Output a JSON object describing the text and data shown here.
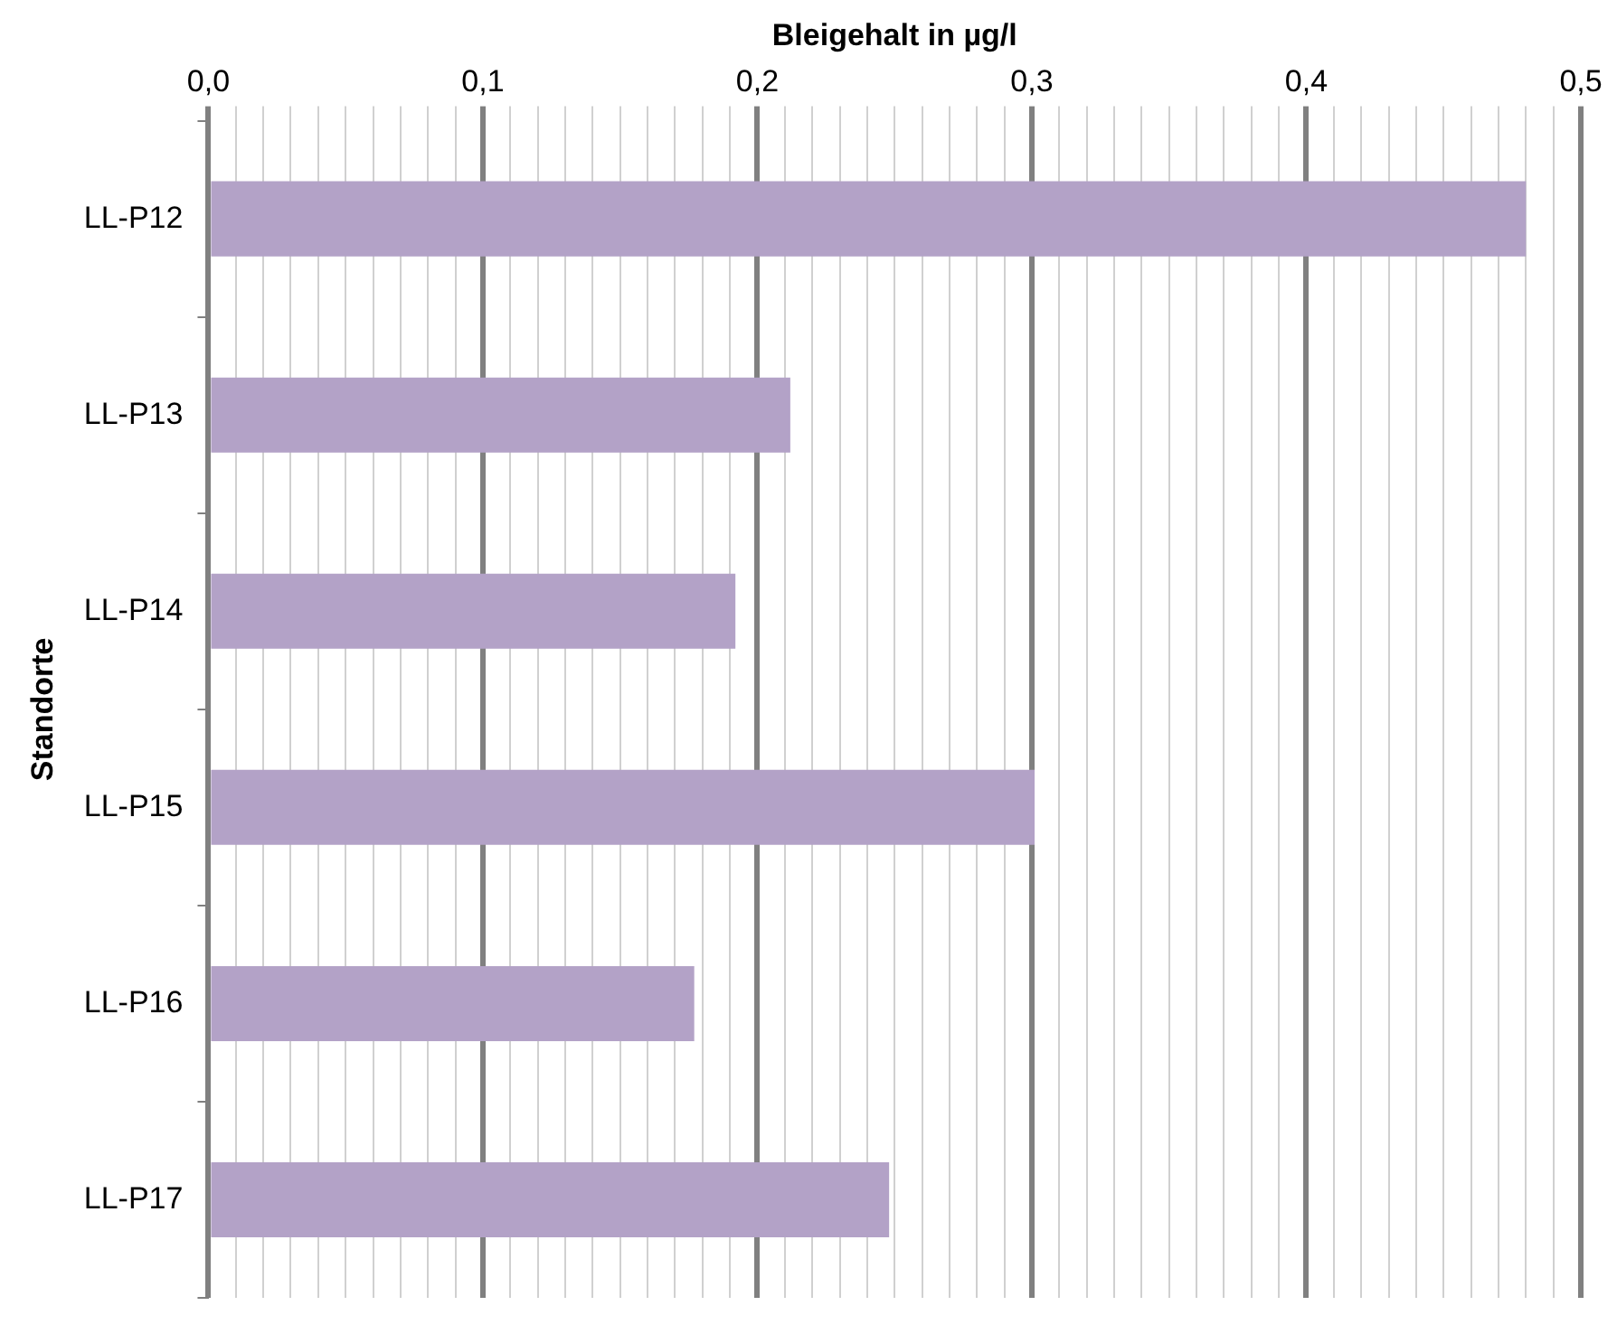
{
  "chart_data": {
    "type": "bar",
    "orientation": "horizontal",
    "xlabel": "Bleigehalt in µg/l",
    "ylabel": "Standorte",
    "categories": [
      "LL-P12",
      "LL-P13",
      "LL-P14",
      "LL-P15",
      "LL-P16",
      "LL-P17"
    ],
    "values": [
      0.48,
      0.212,
      0.192,
      0.301,
      0.177,
      0.248
    ],
    "color": "#b3a2c7",
    "xlim": [
      0,
      0.5
    ],
    "xticks": [
      {
        "value": 0,
        "label": "0,0"
      },
      {
        "value": 0.01,
        "label": null
      },
      {
        "value": 0.02,
        "label": null
      },
      {
        "value": 0.03,
        "label": null
      },
      {
        "value": 0.04,
        "label": null
      },
      {
        "value": 0.05,
        "label": null
      },
      {
        "value": 0.06,
        "label": null
      },
      {
        "value": 0.07,
        "label": null
      },
      {
        "value": 0.08,
        "label": null
      },
      {
        "value": 0.09,
        "label": null
      },
      {
        "value": 0.1,
        "label": "0,1"
      },
      {
        "value": 0.11,
        "label": null
      },
      {
        "value": 0.12,
        "label": null
      },
      {
        "value": 0.13,
        "label": null
      },
      {
        "value": 0.14,
        "label": null
      },
      {
        "value": 0.15,
        "label": null
      },
      {
        "value": 0.16,
        "label": null
      },
      {
        "value": 0.17,
        "label": null
      },
      {
        "value": 0.18,
        "label": null
      },
      {
        "value": 0.19,
        "label": null
      },
      {
        "value": 0.2,
        "label": "0,2"
      },
      {
        "value": 0.21,
        "label": null
      },
      {
        "value": 0.22,
        "label": null
      },
      {
        "value": 0.23,
        "label": null
      },
      {
        "value": 0.24,
        "label": null
      },
      {
        "value": 0.25,
        "label": null
      },
      {
        "value": 0.26,
        "label": null
      },
      {
        "value": 0.27,
        "label": null
      },
      {
        "value": 0.28,
        "label": null
      },
      {
        "value": 0.29,
        "label": null
      },
      {
        "value": 0.3,
        "label": "0,3"
      },
      {
        "value": 0.31,
        "label": null
      },
      {
        "value": 0.32,
        "label": null
      },
      {
        "value": 0.33,
        "label": null
      },
      {
        "value": 0.34,
        "label": null
      },
      {
        "value": 0.35,
        "label": null
      },
      {
        "value": 0.36,
        "label": null
      },
      {
        "value": 0.37,
        "label": null
      },
      {
        "value": 0.38,
        "label": null
      },
      {
        "value": 0.39,
        "label": null
      },
      {
        "value": 0.4,
        "label": "0,4"
      },
      {
        "value": 0.41,
        "label": null
      },
      {
        "value": 0.42,
        "label": null
      },
      {
        "value": 0.43,
        "label": null
      },
      {
        "value": 0.44,
        "label": null
      },
      {
        "value": 0.45,
        "label": null
      },
      {
        "value": 0.46,
        "label": null
      },
      {
        "value": 0.47,
        "label": null
      },
      {
        "value": 0.48,
        "label": null
      },
      {
        "value": 0.49,
        "label": null
      },
      {
        "value": 0.5,
        "label": "0,5"
      }
    ],
    "grid": "x",
    "legend": false
  }
}
